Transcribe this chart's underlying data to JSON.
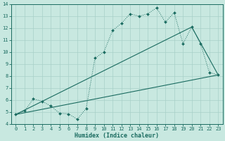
{
  "xlabel": "Humidex (Indice chaleur)",
  "xlim": [
    -0.5,
    23.5
  ],
  "ylim": [
    4,
    14
  ],
  "xticks": [
    0,
    1,
    2,
    3,
    4,
    5,
    6,
    7,
    8,
    9,
    10,
    11,
    12,
    13,
    14,
    15,
    16,
    17,
    18,
    19,
    20,
    21,
    22,
    23
  ],
  "yticks": [
    4,
    5,
    6,
    7,
    8,
    9,
    10,
    11,
    12,
    13,
    14
  ],
  "background_color": "#c8e8e0",
  "line_color": "#1a6b60",
  "grid_color": "#a8d0c8",
  "line1_x": [
    0,
    1,
    2,
    3,
    4,
    5,
    6,
    7,
    8,
    9,
    10,
    11,
    12,
    13,
    14,
    15,
    16,
    17,
    18,
    19,
    20,
    21,
    22,
    23
  ],
  "line1_y": [
    4.8,
    5.1,
    6.1,
    5.9,
    5.5,
    4.9,
    4.85,
    4.4,
    5.3,
    9.5,
    10.0,
    11.8,
    12.4,
    13.2,
    13.0,
    13.2,
    13.7,
    12.5,
    13.3,
    10.7,
    12.1,
    10.7,
    8.3,
    8.1
  ],
  "line2_x": [
    0,
    20,
    23
  ],
  "line2_y": [
    4.8,
    12.1,
    8.1
  ],
  "line3_x": [
    0,
    23
  ],
  "line3_y": [
    4.8,
    8.1
  ]
}
